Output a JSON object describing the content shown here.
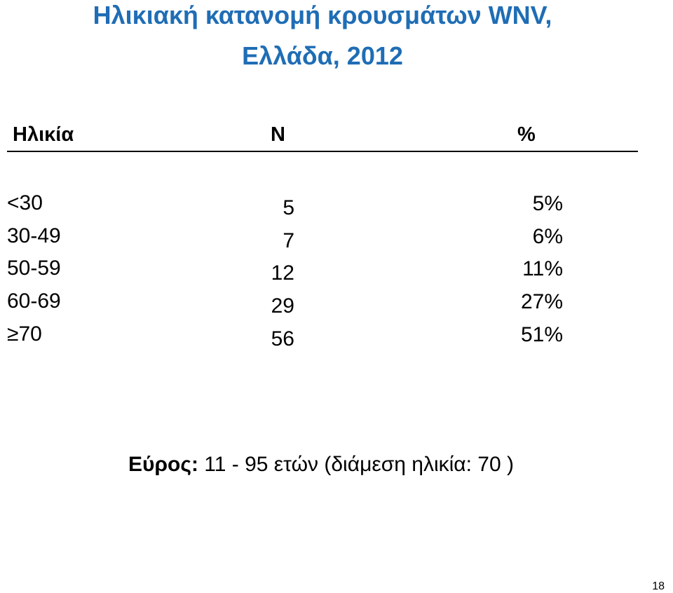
{
  "title": {
    "lines": [
      "Ηλικιακή κατανομή  κρουσμάτων WNV,",
      "Ελλάδα, 2012"
    ]
  },
  "table": {
    "headers": [
      "Ηλικία",
      "N",
      "%"
    ],
    "rows": [
      [
        "<30",
        "5",
        "5%"
      ],
      [
        "30-49",
        "7",
        "6%"
      ],
      [
        "50-59",
        "12",
        "11%"
      ],
      [
        "60-69",
        "29",
        "27%"
      ],
      [
        "≥70",
        "56",
        "51%"
      ]
    ]
  },
  "footer": {
    "label": "Εύρος:",
    "text": " 11 - 95 ετών (διάμεση ηλικία: 70 )"
  },
  "page_number": "18"
}
